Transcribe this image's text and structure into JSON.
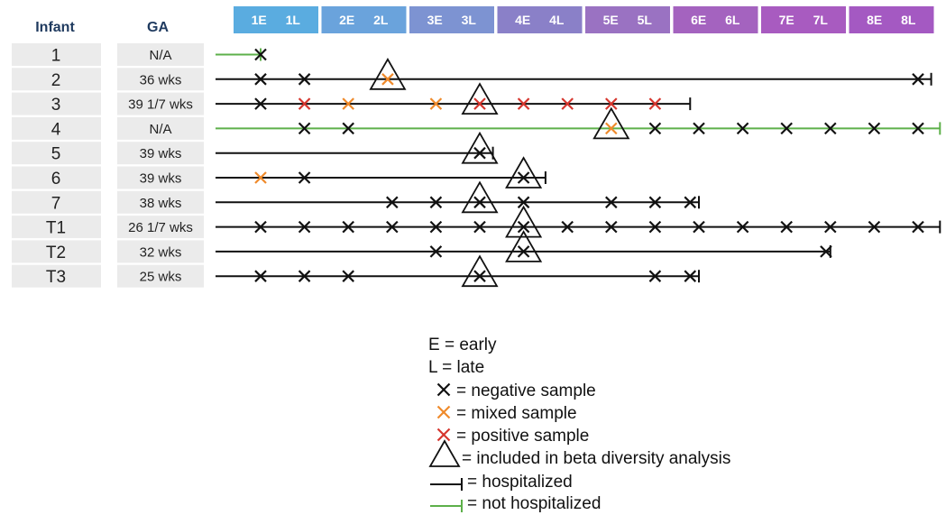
{
  "headers": {
    "infant": "Infant",
    "ga": "GA"
  },
  "months": [
    {
      "e": "1E",
      "l": "1L",
      "color": "#5aace0"
    },
    {
      "e": "2E",
      "l": "2L",
      "color": "#6aa3dc"
    },
    {
      "e": "3E",
      "l": "3L",
      "color": "#7d93d2"
    },
    {
      "e": "4E",
      "l": "4L",
      "color": "#8a80c8"
    },
    {
      "e": "5E",
      "l": "5L",
      "color": "#9a72c2"
    },
    {
      "e": "6E",
      "l": "6L",
      "color": "#a463bf"
    },
    {
      "e": "7E",
      "l": "7L",
      "color": "#a85bc0"
    },
    {
      "e": "8E",
      "l": "8L",
      "color": "#a459c2"
    }
  ],
  "colors": {
    "negative": "#111111",
    "mixed": "#ef8a2b",
    "positive": "#d6362e",
    "hospitalized": "#111111",
    "not_hospitalized": "#5db04a",
    "label_bg": "#ebebeb",
    "header_text": "#1f3a5f"
  },
  "infants": [
    {
      "id": "1",
      "ga": "N/A",
      "hospitalized": false,
      "line_end": 1.0,
      "samples": [
        {
          "t": 1.0,
          "type": "negative"
        }
      ],
      "beta": []
    },
    {
      "id": "2",
      "ga": "36 wks",
      "hospitalized": true,
      "line_end": 16.3,
      "samples": [
        {
          "t": 1.0,
          "type": "negative"
        },
        {
          "t": 2.0,
          "type": "negative"
        },
        {
          "t": 3.9,
          "type": "mixed"
        },
        {
          "t": 16.0,
          "type": "negative"
        }
      ],
      "beta": [
        3.9
      ]
    },
    {
      "id": "3",
      "ga": "39 1/7 wks",
      "hospitalized": true,
      "line_end": 10.8,
      "samples": [
        {
          "t": 1.0,
          "type": "negative"
        },
        {
          "t": 2.0,
          "type": "positive"
        },
        {
          "t": 3.0,
          "type": "mixed"
        },
        {
          "t": 5.0,
          "type": "mixed"
        },
        {
          "t": 6.0,
          "type": "positive"
        },
        {
          "t": 7.0,
          "type": "positive"
        },
        {
          "t": 8.0,
          "type": "positive"
        },
        {
          "t": 9.0,
          "type": "positive"
        },
        {
          "t": 10.0,
          "type": "positive"
        }
      ],
      "beta": [
        6.0
      ]
    },
    {
      "id": "4",
      "ga": "N/A",
      "hospitalized": false,
      "line_end": 16.5,
      "samples": [
        {
          "t": 2.0,
          "type": "negative"
        },
        {
          "t": 3.0,
          "type": "negative"
        },
        {
          "t": 9.0,
          "type": "mixed"
        },
        {
          "t": 10.0,
          "type": "negative"
        },
        {
          "t": 11.0,
          "type": "negative"
        },
        {
          "t": 12.0,
          "type": "negative"
        },
        {
          "t": 13.0,
          "type": "negative"
        },
        {
          "t": 14.0,
          "type": "negative"
        },
        {
          "t": 15.0,
          "type": "negative"
        },
        {
          "t": 16.0,
          "type": "negative"
        }
      ],
      "beta": [
        9.0
      ]
    },
    {
      "id": "5",
      "ga": "39 wks",
      "hospitalized": true,
      "line_end": 6.3,
      "samples": [
        {
          "t": 6.0,
          "type": "negative"
        }
      ],
      "beta": [
        6.0
      ]
    },
    {
      "id": "6",
      "ga": "39 wks",
      "hospitalized": true,
      "line_end": 7.5,
      "samples": [
        {
          "t": 1.0,
          "type": "mixed"
        },
        {
          "t": 2.0,
          "type": "negative"
        },
        {
          "t": 7.0,
          "type": "negative"
        }
      ],
      "beta": [
        7.0
      ]
    },
    {
      "id": "7",
      "ga": "38 wks",
      "hospitalized": true,
      "line_end": 11.0,
      "samples": [
        {
          "t": 4.0,
          "type": "negative"
        },
        {
          "t": 5.0,
          "type": "negative"
        },
        {
          "t": 6.0,
          "type": "negative"
        },
        {
          "t": 7.0,
          "type": "negative"
        },
        {
          "t": 9.0,
          "type": "negative"
        },
        {
          "t": 10.0,
          "type": "negative"
        },
        {
          "t": 10.8,
          "type": "negative"
        }
      ],
      "beta": [
        6.0
      ]
    },
    {
      "id": "T1",
      "ga": "26 1/7 wks",
      "hospitalized": true,
      "line_end": 16.5,
      "samples": [
        {
          "t": 1.0,
          "type": "negative"
        },
        {
          "t": 2.0,
          "type": "negative"
        },
        {
          "t": 3.0,
          "type": "negative"
        },
        {
          "t": 4.0,
          "type": "negative"
        },
        {
          "t": 5.0,
          "type": "negative"
        },
        {
          "t": 6.0,
          "type": "negative"
        },
        {
          "t": 7.0,
          "type": "negative"
        },
        {
          "t": 8.0,
          "type": "negative"
        },
        {
          "t": 9.0,
          "type": "negative"
        },
        {
          "t": 10.0,
          "type": "negative"
        },
        {
          "t": 11.0,
          "type": "negative"
        },
        {
          "t": 12.0,
          "type": "negative"
        },
        {
          "t": 13.0,
          "type": "negative"
        },
        {
          "t": 14.0,
          "type": "negative"
        },
        {
          "t": 15.0,
          "type": "negative"
        },
        {
          "t": 16.0,
          "type": "negative"
        }
      ],
      "beta": [
        7.0
      ]
    },
    {
      "id": "T2",
      "ga": "32 wks",
      "hospitalized": true,
      "line_end": 14.0,
      "samples": [
        {
          "t": 5.0,
          "type": "negative"
        },
        {
          "t": 7.0,
          "type": "negative"
        },
        {
          "t": 13.9,
          "type": "negative"
        }
      ],
      "beta": [
        7.0
      ]
    },
    {
      "id": "T3",
      "ga": "25 wks",
      "hospitalized": true,
      "line_end": 11.0,
      "samples": [
        {
          "t": 1.0,
          "type": "negative"
        },
        {
          "t": 2.0,
          "type": "negative"
        },
        {
          "t": 3.0,
          "type": "negative"
        },
        {
          "t": 6.0,
          "type": "negative"
        },
        {
          "t": 10.0,
          "type": "negative"
        },
        {
          "t": 10.8,
          "type": "negative"
        }
      ],
      "beta": [
        6.0
      ]
    }
  ],
  "legend": {
    "early": "E = early",
    "late": "L = late",
    "negative": "= negative sample",
    "mixed": "= mixed sample",
    "positive": "= positive sample",
    "beta": "= included in beta diversity analysis",
    "hospitalized": "= hospitalized",
    "not_hospitalized": "= not hospitalized"
  }
}
